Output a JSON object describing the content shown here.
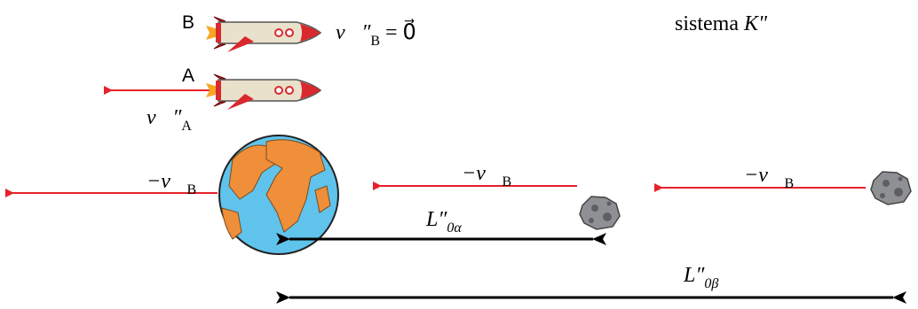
{
  "title": {
    "word": "sistema",
    "symbol": "K\""
  },
  "rockets": [
    {
      "label": "B",
      "velocity": {
        "symbol": "v⃗″",
        "subscript": "B",
        "equals": "= 0⃗"
      }
    },
    {
      "label": "A",
      "velocity": {
        "symbol": "v⃗″",
        "subscript": "A"
      }
    }
  ],
  "velocity_labels": [
    {
      "symbol": "−v⃗",
      "subscript": "B"
    },
    {
      "symbol": "−v⃗",
      "subscript": "B"
    },
    {
      "symbol": "−v⃗",
      "subscript": "B"
    }
  ],
  "distances": [
    {
      "symbol": "L″",
      "subscript": "0α"
    },
    {
      "symbol": "L″",
      "subscript": "0β"
    }
  ]
}
